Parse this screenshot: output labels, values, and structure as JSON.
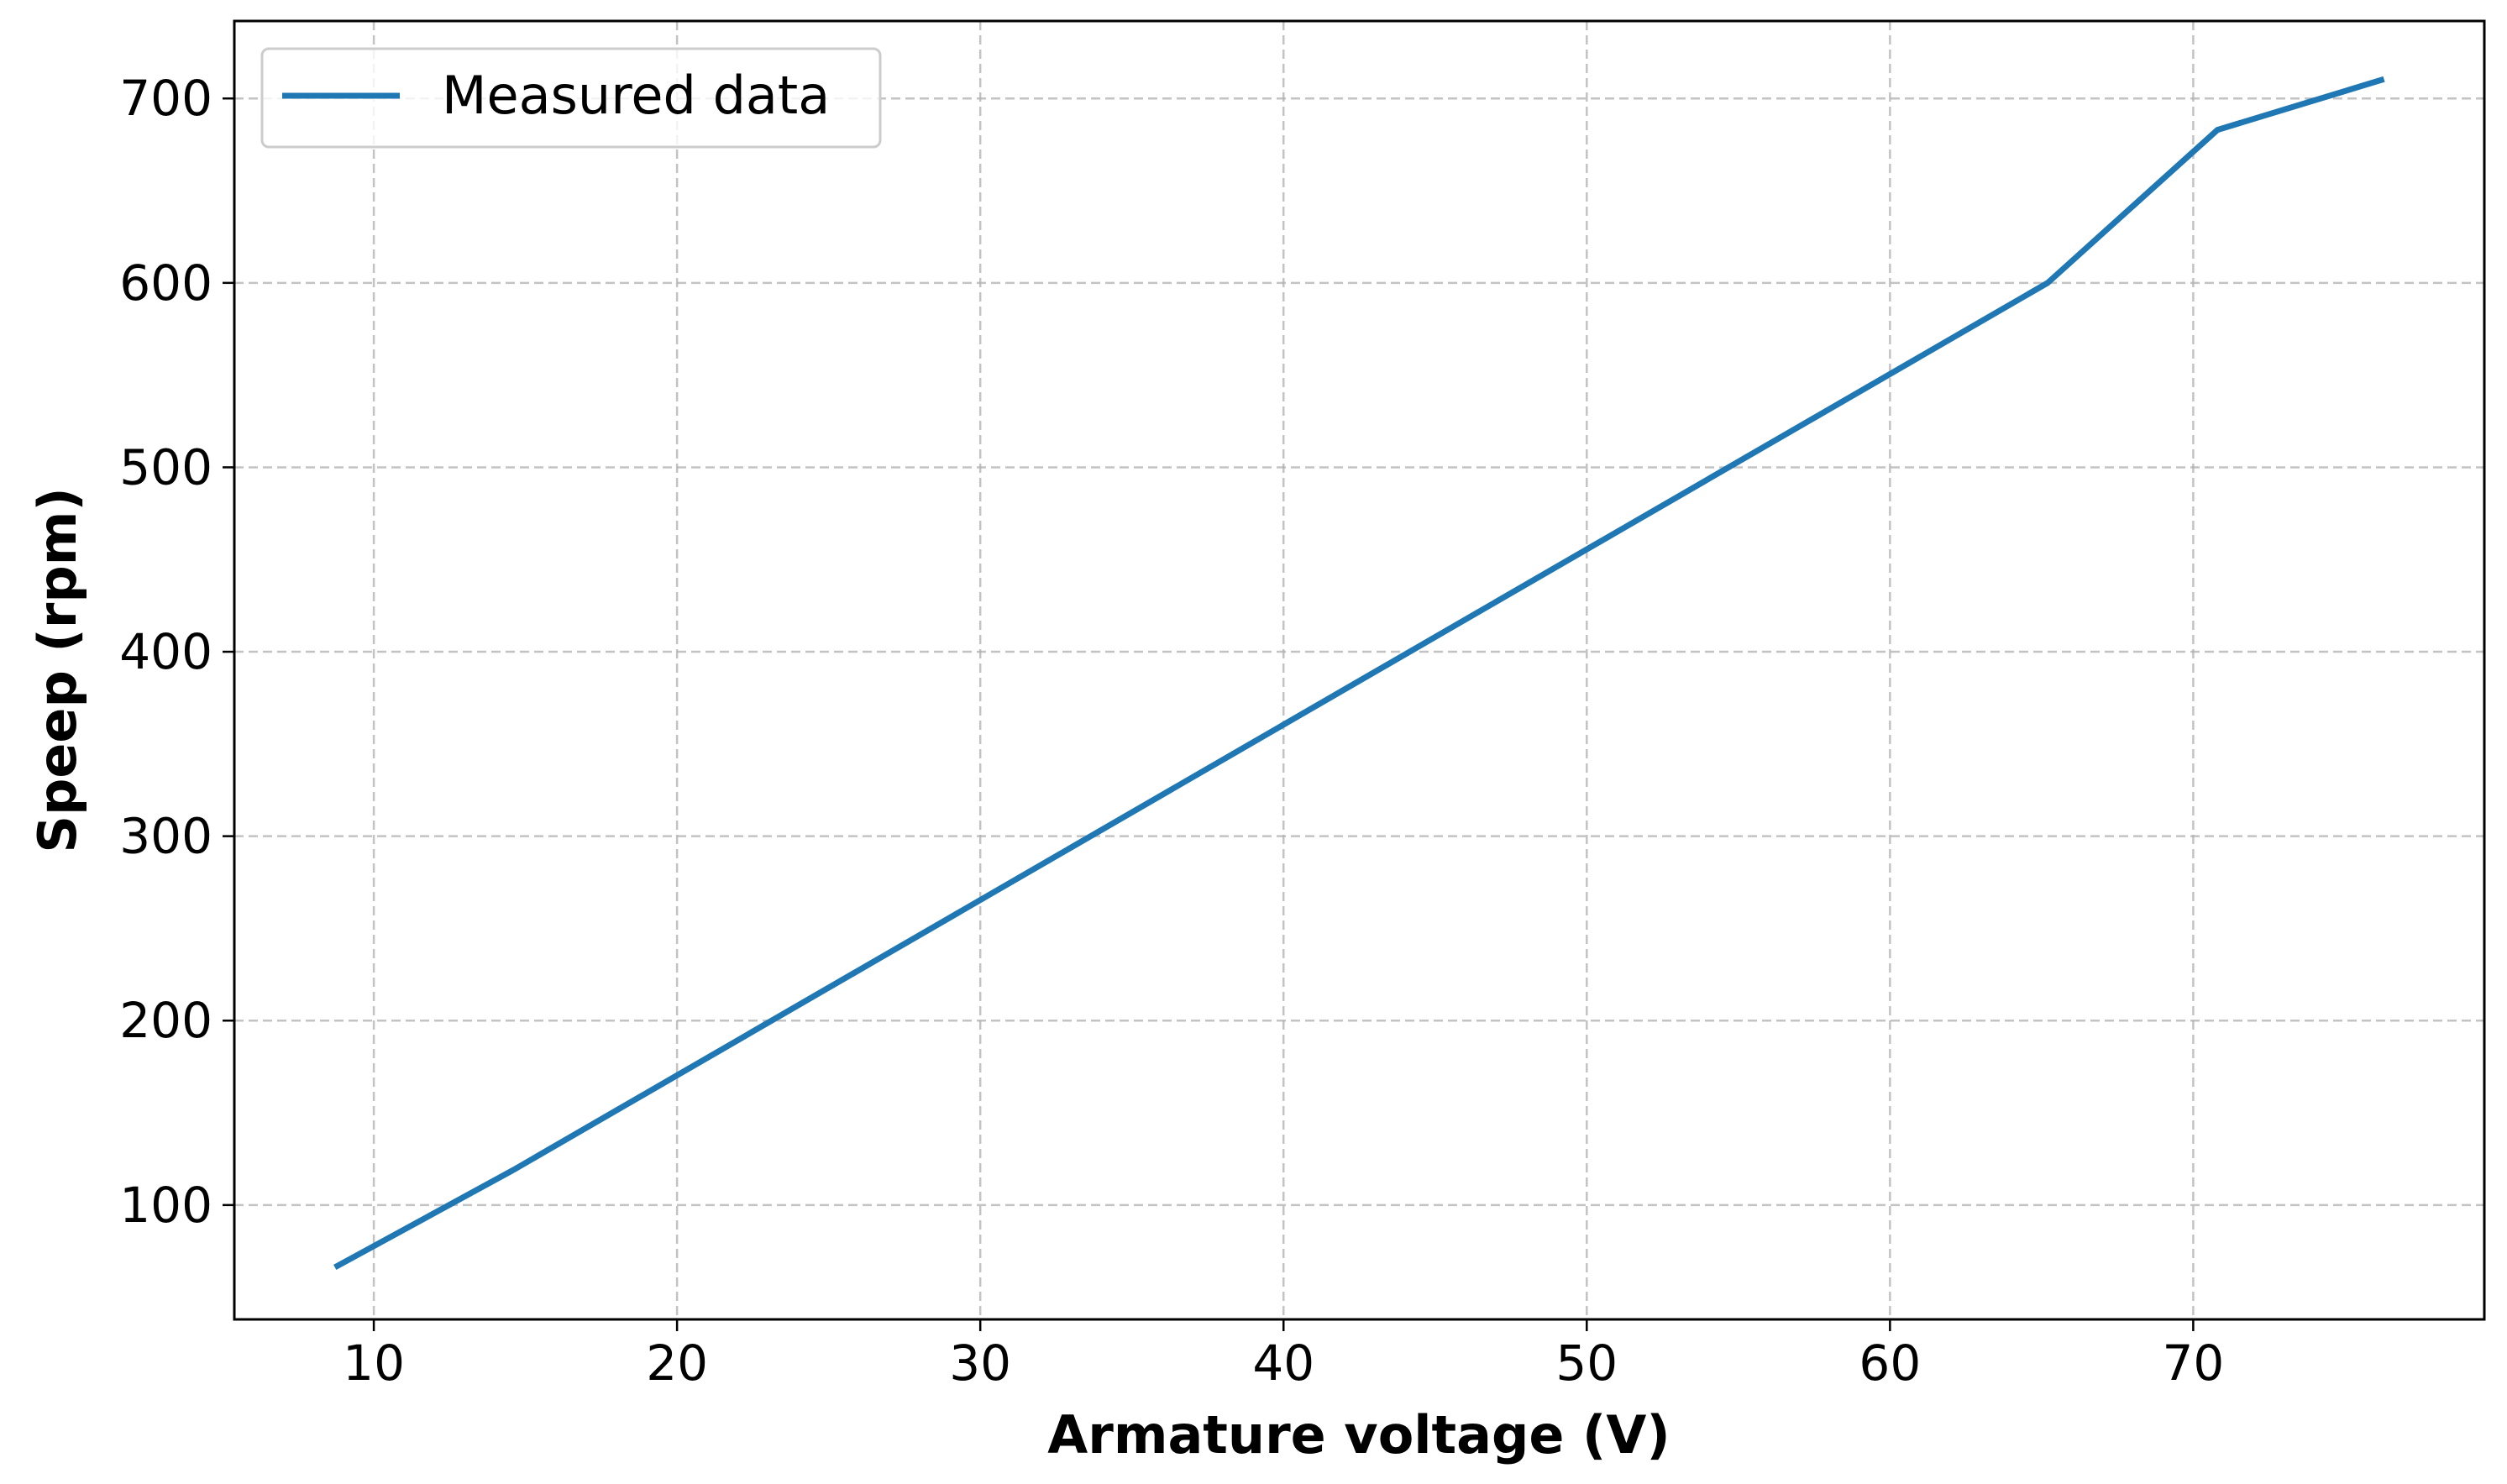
{
  "chart_data": {
    "type": "line",
    "title": "",
    "xlabel": "Armature voltage (V)",
    "ylabel": "Speep (rpm)",
    "xlim": [
      5.4,
      79.6
    ],
    "ylim": [
      38,
      742
    ],
    "xticks": [
      10,
      20,
      30,
      40,
      50,
      60,
      70
    ],
    "yticks": [
      100,
      200,
      300,
      400,
      500,
      600,
      700
    ],
    "grid": true,
    "legend_position": "upper-left",
    "series": [
      {
        "name": "Measured data",
        "color": "#1f77b4",
        "x": [
          8.8,
          14.6,
          65.2,
          70.8,
          76.2
        ],
        "y": [
          67,
          119,
          600,
          683,
          710
        ]
      }
    ]
  }
}
